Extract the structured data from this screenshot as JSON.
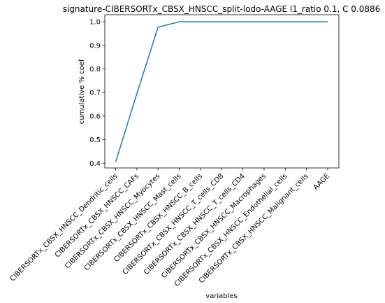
{
  "chart_data": {
    "type": "line",
    "title": "signature-CIBERSORTx_CBSX_HNSCC_split-lodo-AAGE l1_ratio 0.1, C 0.0886",
    "xlabel": "variables",
    "ylabel": "cumulative % coef",
    "categories": [
      "CIBERSORTx_CBSX_HNSCC_Dendritic_cells",
      "CIBERSORTx_CBSX_HNSCC_CAFs",
      "CIBERSORTx_CBSX_HNSCC_Myocytes",
      "CIBERSORTx_CBSX_HNSCC_Mast_cells",
      "CIBERSORTx_CBSX_HNSCC_B_cells",
      "CIBERSORTx_CBSX_HNSCC_T_cells_CD8",
      "CIBERSORTx_CBSX_HNSCC_T_cells_CD4",
      "CIBERSORTx_CBSX_HNSCC_Macrophages",
      "CIBERSORTx_CBSX_HNSCC_Endothelial_cells",
      "CIBERSORTx_CBSX_HNSCC_Malignant_cells",
      "AAGE"
    ],
    "series": [
      {
        "values": [
          0.405,
          0.695,
          0.977,
          1.0,
          1.0,
          1.0,
          1.0,
          1.0,
          1.0,
          1.0,
          1.0
        ],
        "color": "#1f77b4"
      }
    ],
    "ylim": [
      0.38,
      1.03
    ],
    "yticks": [
      "0.4",
      "0.5",
      "0.6",
      "0.7",
      "0.8",
      "0.9",
      "1.0"
    ],
    "grid": false,
    "legend": "none"
  }
}
